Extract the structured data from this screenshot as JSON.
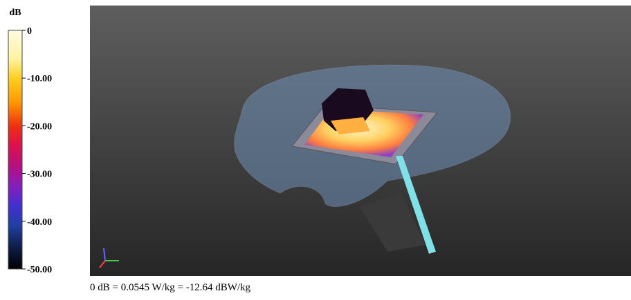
{
  "colorbar": {
    "unit": "dB",
    "lim": [
      -50,
      0
    ],
    "ticks": [
      0,
      {
        "value": -10,
        "label": "-10.00"
      },
      {
        "value": -20,
        "label": "-20.00"
      },
      {
        "value": -30,
        "label": "-30.00"
      },
      {
        "value": -40,
        "label": "-40.00"
      },
      {
        "value": -50,
        "label": "-50.00"
      }
    ]
  },
  "caption": "0 dB = 0.0545 W/kg = -12.64 dBW/kg"
}
